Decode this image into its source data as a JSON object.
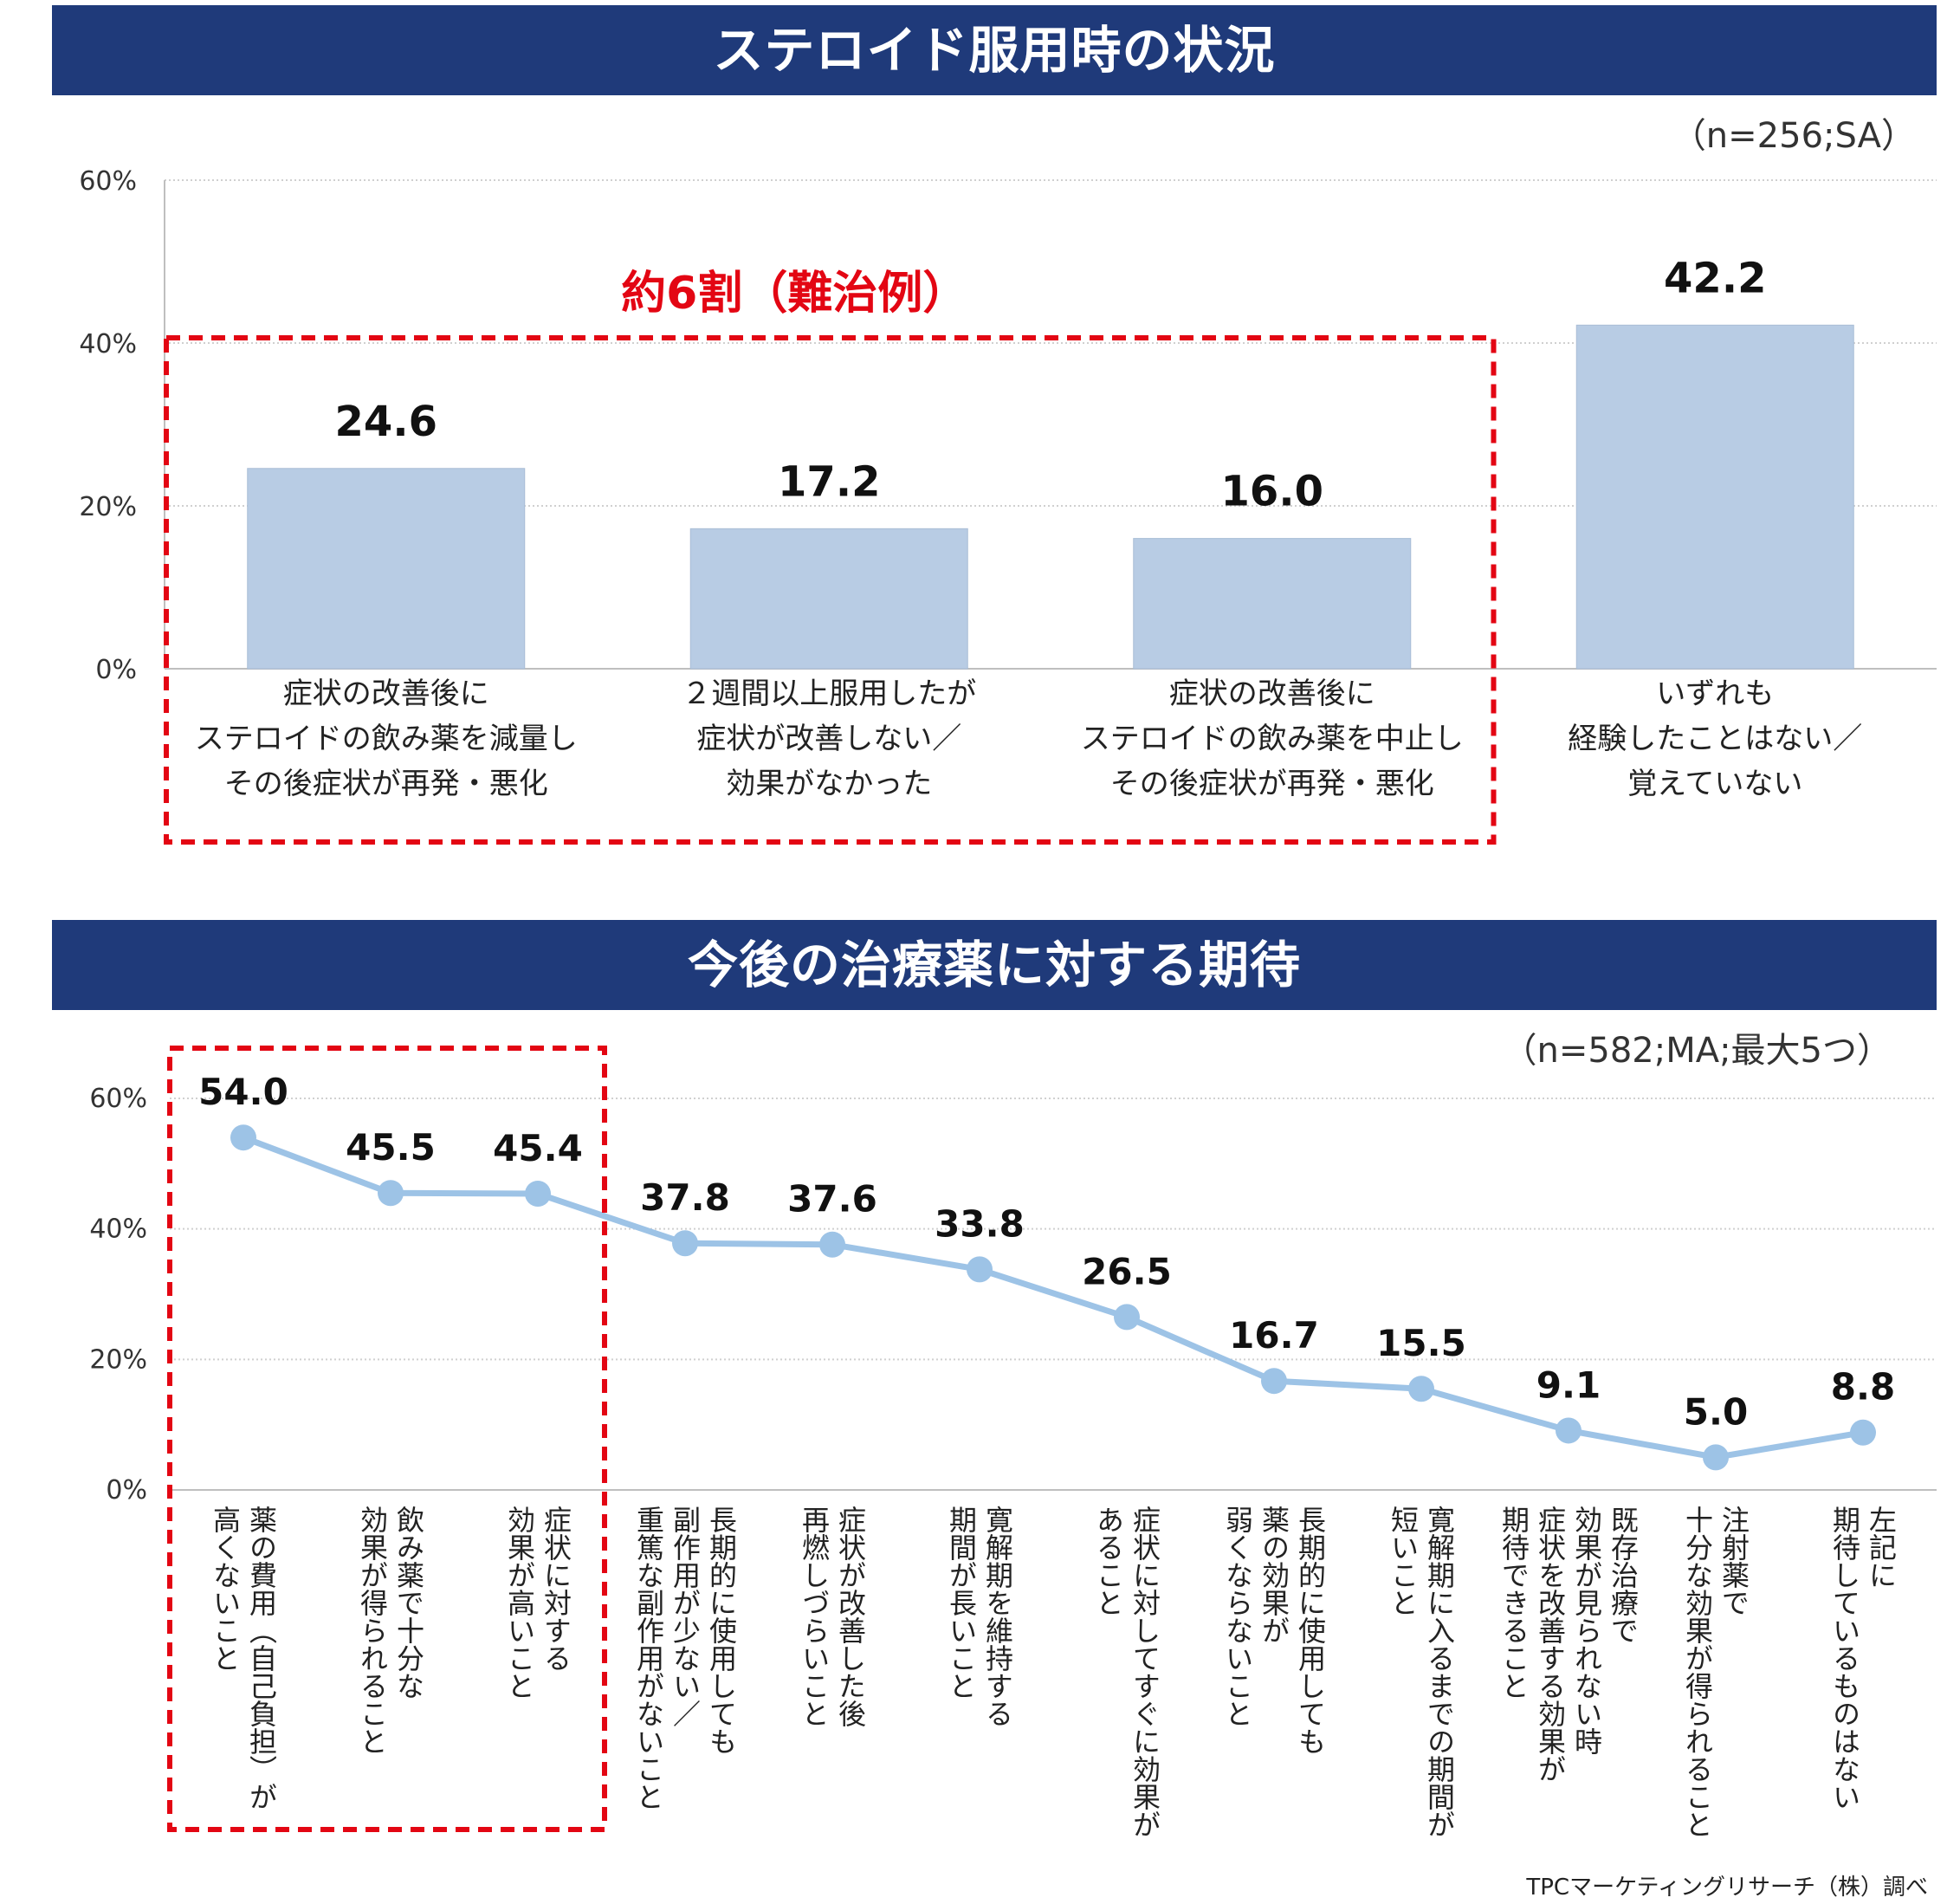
{
  "chart_data": [
    {
      "type": "bar",
      "title": "ステロイド服用時の状況",
      "sample_note": "（n=256;SA）",
      "y_ticks": [
        "0%",
        "20%",
        "40%",
        "60%"
      ],
      "ylim": [
        0,
        60
      ],
      "categories": [
        [
          "症状の改善後に",
          "ステロイドの飲み薬を減量し",
          "その後症状が再発・悪化"
        ],
        [
          "２週間以上服用したが",
          "症状が改善しない／",
          "効果がなかった"
        ],
        [
          "症状の改善後に",
          "ステロイドの飲み薬を中止し",
          "その後症状が再発・悪化"
        ],
        [
          "いずれも",
          "経験したことはない／",
          "覚えていない"
        ]
      ],
      "values": [
        24.6,
        17.2,
        16.0,
        42.2
      ],
      "value_labels": [
        "24.6",
        "17.2",
        "16.0",
        "42.2"
      ],
      "callout": "約6割（難治例）",
      "highlight_categories": [
        0,
        1,
        2
      ]
    },
    {
      "type": "line",
      "title": "今後の治療薬に対する期待",
      "sample_note": "（n=582;MA;最大5つ）",
      "y_ticks": [
        "0%",
        "20%",
        "40%",
        "60%"
      ],
      "ylim": [
        0,
        60
      ],
      "categories": [
        [
          "薬の費用（自己負担）が",
          "高くないこと"
        ],
        [
          "飲み薬で十分な",
          "効果が得られること"
        ],
        [
          "症状に対する",
          "効果が高いこと"
        ],
        [
          "長期的に使用しても",
          "副作用が少ない／",
          "重篤な副作用がないこと"
        ],
        [
          "症状が改善した後",
          "再燃しづらいこと"
        ],
        [
          "寛解期を維持する",
          "期間が長いこと"
        ],
        [
          "症状に対してすぐに効果が",
          "あること"
        ],
        [
          "長期的に使用しても",
          "薬の効果が",
          "弱くならないこと"
        ],
        [
          "寛解期に入るまでの期間が",
          "短いこと"
        ],
        [
          "既存治療で",
          "効果が見られない時",
          "症状を改善する効果が",
          "期待できること"
        ],
        [
          "注射薬で",
          "十分な効果が得られること"
        ],
        [
          "左記に",
          "期待しているものはない"
        ]
      ],
      "values": [
        54.0,
        45.5,
        45.4,
        37.8,
        37.6,
        33.8,
        26.5,
        16.7,
        15.5,
        9.1,
        5.0,
        8.8
      ],
      "value_labels": [
        "54.0",
        "45.5",
        "45.4",
        "37.8",
        "37.6",
        "33.8",
        "26.5",
        "16.7",
        "15.5",
        "9.1",
        "5.0",
        "8.8"
      ],
      "highlight_categories": [
        0,
        1,
        2
      ]
    }
  ],
  "colors": {
    "banner": "#1f3a7a",
    "bar": "#b8cce4",
    "line": "#9dc3e6",
    "highlight": "#e30613"
  },
  "credit": "TPCマーケティングリサーチ（株）調べ"
}
